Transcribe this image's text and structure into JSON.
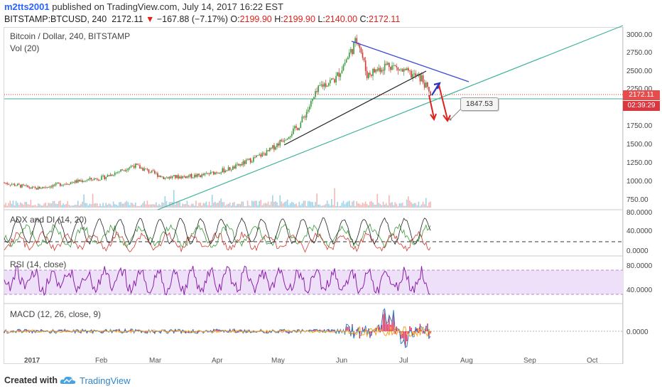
{
  "header": {
    "user": "m2tts2001",
    "published": "published on TradingView.com, July 14, 2017 16:22 EST",
    "symbol": "BITSTAMP:BTCUSD, 240",
    "last": "2172.11",
    "change_arrow": "▼",
    "change": "−167.88 (−7.17%)",
    "o_label": "O:",
    "o_val": "2199.90",
    "h_label": "H:",
    "h_val": "2199.90",
    "l_label": "L:",
    "l_val": "2140.00",
    "c_label": "C:",
    "c_val": "2172.11"
  },
  "footer": {
    "created": "Created with",
    "brand": "TradingView",
    "logo_icon": "tradingview-cloud-icon"
  },
  "price_tags": {
    "last": "2172.11",
    "countdown": "02:39:29",
    "last_color": "#e84b4b",
    "countdown_color": "#d9363e"
  },
  "annotation": "1847.53",
  "colors": {
    "up": "#3a9a3a",
    "down": "#d0392f",
    "trend_blue": "#3b48d8",
    "trend_teal": "#3fb29c",
    "rsi": "#8a1fa8",
    "macd": "#2f86c9",
    "signal": "#f5a623",
    "hist": "#e8194b"
  },
  "chart_data": [
    {
      "type": "candlestick",
      "title": "Bitcoin / Dollar, 240, BITSTAMP",
      "sub_legend": "Vol (20)",
      "y_ticks": [
        "3000.00",
        "2750.00",
        "2500.00",
        "2250.00",
        "1750.00",
        "1500.00",
        "1250.00",
        "1000.00",
        "750.00"
      ],
      "ylim": [
        650,
        3050
      ],
      "x_ticks": [
        "2017",
        "Feb",
        "Mar",
        "Apr",
        "May",
        "Jun",
        "Jul",
        "Aug",
        "Sep",
        "Oct"
      ],
      "x": [
        "2017-01-01",
        "2017-01-15",
        "2017-02-01",
        "2017-02-15",
        "2017-03-01",
        "2017-03-15",
        "2017-04-01",
        "2017-04-15",
        "2017-05-01",
        "2017-05-15",
        "2017-05-25",
        "2017-06-01",
        "2017-06-11",
        "2017-06-15",
        "2017-06-25",
        "2017-07-01",
        "2017-07-10",
        "2017-07-14"
      ],
      "close": [
        980,
        900,
        990,
        1050,
        1220,
        1050,
        1080,
        1180,
        1400,
        1750,
        2300,
        2400,
        2950,
        2450,
        2600,
        2500,
        2400,
        2172
      ],
      "last": 2172.11,
      "annotation_value": 1847.53
    },
    {
      "type": "line",
      "title": "ADX and DI (14, 20)",
      "y_ticks": [
        "80.0000",
        "40.0000",
        "0.0000"
      ],
      "ylim": [
        0,
        90
      ],
      "threshold": 20
    },
    {
      "type": "line",
      "title": "RSI (14, close)",
      "y_ticks": [
        "80.0000",
        "40.0000"
      ],
      "ylim": [
        20,
        90
      ],
      "band": [
        30,
        70
      ],
      "last": 32
    },
    {
      "type": "line",
      "title": "MACD (12, 26, close, 9)",
      "y_ticks": [
        "0.0000"
      ],
      "ylim": [
        -150,
        120
      ]
    }
  ]
}
